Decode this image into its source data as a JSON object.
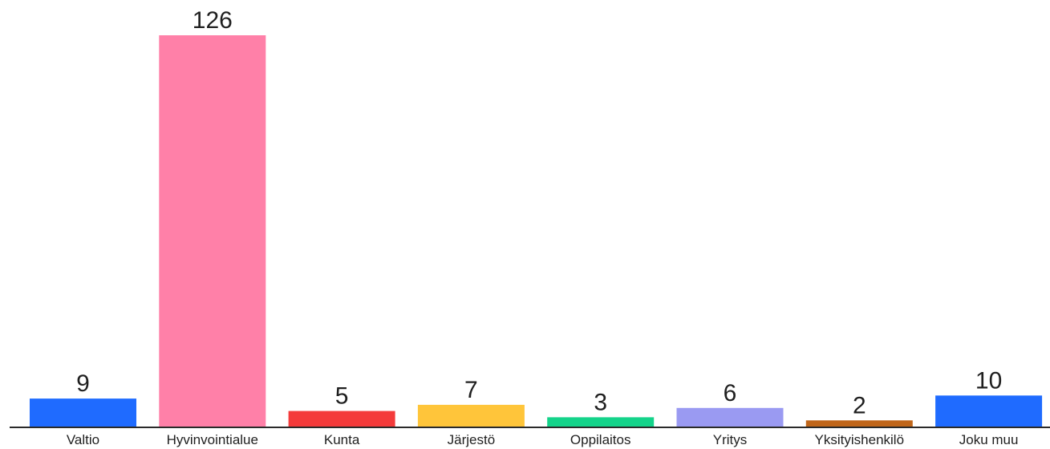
{
  "chart_data": {
    "type": "bar",
    "categories": [
      "Valtio",
      "Hyvinvointialue",
      "Kunta",
      "Järjestö",
      "Oppilaitos",
      "Yritys",
      "Yksityishenkilö",
      "Joku muu"
    ],
    "values": [
      9,
      126,
      5,
      7,
      3,
      6,
      2,
      10
    ],
    "colors": [
      "#1f6bff",
      "#ff80a8",
      "#f43b3b",
      "#ffc53a",
      "#14d38a",
      "#9a9af2",
      "#c0661a",
      "#1f6bff"
    ],
    "axis_color": "#2a2a2a",
    "title": "",
    "xlabel": "",
    "ylabel": "",
    "ylim": [
      0,
      126
    ],
    "grid": false,
    "legend": "none"
  }
}
